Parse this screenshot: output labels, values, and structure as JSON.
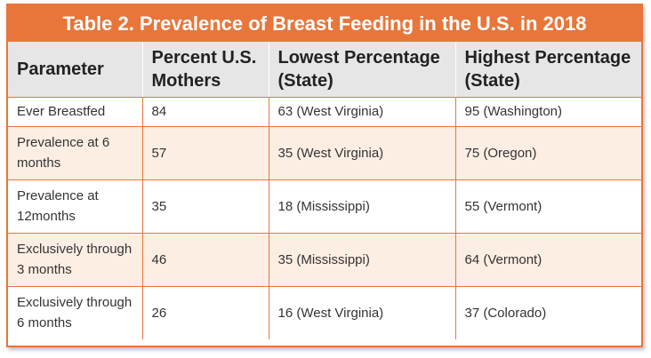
{
  "table": {
    "title": "Table 2. Prevalence of Breast Feeding in the U.S. in 2018",
    "headers": [
      "Parameter",
      "Percent U.S. Mothers",
      "Lowest Percentage (State)",
      "Highest Percentage (State)"
    ],
    "rows": [
      {
        "parameter": "Ever Breastfed",
        "percent": "84",
        "lowest": "63 (West Virginia)",
        "highest": "95 (Washington)"
      },
      {
        "parameter": "Prevalence at 6 months",
        "percent": "57",
        "lowest": "35 (West Virginia)",
        "highest": "75 (Oregon)"
      },
      {
        "parameter": "Prevalence at 12months",
        "percent": "35",
        "lowest": "18 (Mississippi)",
        "highest": "55 (Vermont)"
      },
      {
        "parameter": "Exclusively through 3 months",
        "percent": "46",
        "lowest": "35 (Mississippi)",
        "highest": "64 (Vermont)"
      },
      {
        "parameter": "Exclusively through 6 months",
        "percent": "26",
        "lowest": "16 (West Virginia)",
        "highest": "37 (Colorado)"
      }
    ]
  },
  "colors": {
    "accent": "#e8763a",
    "header_bg": "#e6e6e7",
    "row_shade": "#fdeee3"
  }
}
